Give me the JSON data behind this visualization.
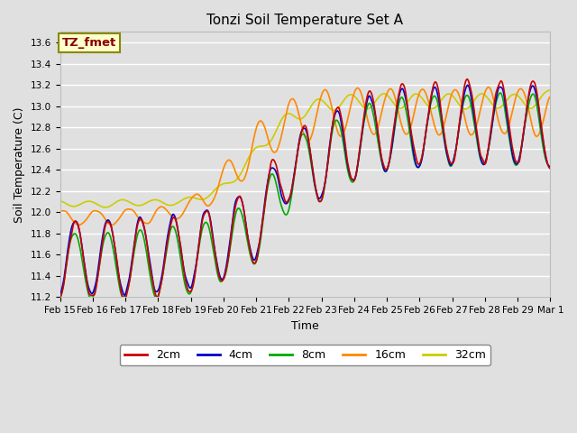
{
  "title": "Tonzi Soil Temperature Set A",
  "xlabel": "Time",
  "ylabel": "Soil Temperature (C)",
  "annotation": "TZ_fmet",
  "ylim": [
    11.2,
    13.7
  ],
  "yticks": [
    11.2,
    11.4,
    11.6,
    11.8,
    12.0,
    12.2,
    12.4,
    12.6,
    12.8,
    13.0,
    13.2,
    13.4,
    13.6
  ],
  "xtick_labels": [
    "Feb 15",
    "Feb 16",
    "Feb 17",
    "Feb 18",
    "Feb 19",
    "Feb 20",
    "Feb 21",
    "Feb 22",
    "Feb 23",
    "Feb 24",
    "Feb 25",
    "Feb 26",
    "Feb 27",
    "Feb 28",
    "Feb 29",
    "Mar 1"
  ],
  "series_colors": {
    "2cm": "#cc0000",
    "4cm": "#0000cc",
    "8cm": "#00aa00",
    "16cm": "#ff8800",
    "32cm": "#cccc00"
  },
  "linewidth": 1.2,
  "background_color": "#e0e0e0",
  "grid_color": "#ffffff",
  "annotation_bg": "#ffffcc",
  "annotation_border": "#888800",
  "annotation_text_color": "#880000",
  "title_fontsize": 11,
  "axis_label_fontsize": 9,
  "tick_fontsize": 7.5,
  "legend_fontsize": 9
}
